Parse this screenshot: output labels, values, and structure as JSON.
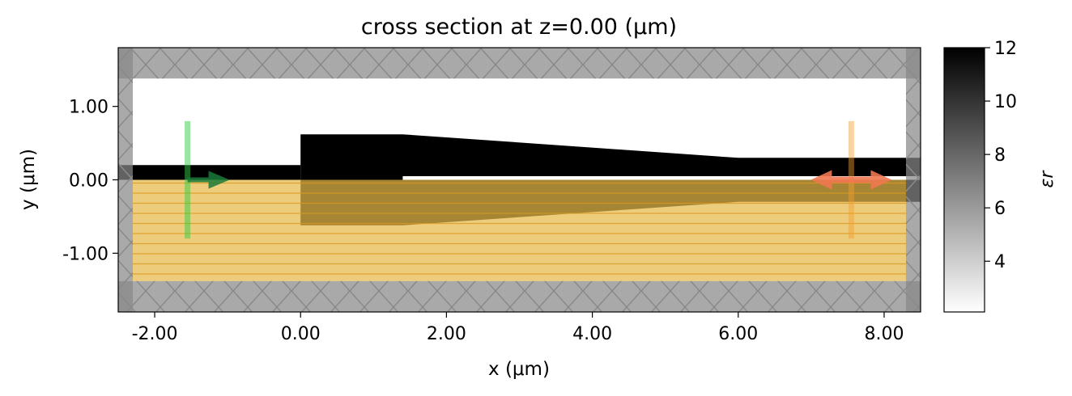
{
  "chart_data": {
    "type": "heatmap",
    "title": "cross section at z=0.00 (μm)",
    "xlabel": "x (μm)",
    "ylabel": "y (μm)",
    "xlim": [
      -2.5,
      8.5
    ],
    "ylim": [
      -1.8,
      1.8
    ],
    "xticks": [
      {
        "value": -2,
        "label": "-2.00"
      },
      {
        "value": 0,
        "label": "0.00"
      },
      {
        "value": 2,
        "label": "2.00"
      },
      {
        "value": 4,
        "label": "4.00"
      },
      {
        "value": 6,
        "label": "6.00"
      },
      {
        "value": 8,
        "label": "8.00"
      }
    ],
    "yticks": [
      {
        "value": 1,
        "label": "1.00"
      },
      {
        "value": 0,
        "label": "0.00"
      },
      {
        "value": -1,
        "label": "-1.00"
      }
    ],
    "colorbar": {
      "label": "εr",
      "range": [
        2.1,
        12
      ],
      "colormap": "gray_r",
      "ticks": [
        {
          "value": 12,
          "label": "12"
        },
        {
          "value": 10,
          "label": "10"
        },
        {
          "value": 8,
          "label": "8"
        },
        {
          "value": 6,
          "label": "6"
        },
        {
          "value": 4,
          "label": "4"
        }
      ]
    },
    "structures": [
      {
        "name": "input-waveguide",
        "permittivity": 12,
        "polygon": [
          [
            -2.5,
            0.2
          ],
          [
            0,
            0.2
          ],
          [
            0,
            0
          ],
          [
            -2.5,
            0
          ]
        ]
      },
      {
        "name": "taper-core",
        "permittivity": 12,
        "polygon": [
          [
            0,
            0.62
          ],
          [
            1.4,
            0.62
          ],
          [
            6,
            0.3
          ],
          [
            8.5,
            0.3
          ],
          [
            8.5,
            -0.3
          ],
          [
            6,
            -0.3
          ],
          [
            1.4,
            -0.62
          ],
          [
            0,
            -0.62
          ]
        ]
      },
      {
        "name": "slot-gap",
        "permittivity": 2.1,
        "polygon": [
          [
            1.4,
            0.05
          ],
          [
            8.5,
            0.05
          ],
          [
            8.5,
            0.0
          ],
          [
            1.4,
            0.0
          ]
        ]
      }
    ],
    "pml_regions": [
      {
        "name": "pml-top",
        "x": [
          -2.5,
          8.5
        ],
        "y": [
          1.38,
          1.8
        ]
      },
      {
        "name": "pml-bottom",
        "x": [
          -2.5,
          8.5
        ],
        "y": [
          -1.8,
          -1.38
        ]
      },
      {
        "name": "pml-left",
        "x": [
          -2.5,
          -2.3
        ],
        "y": [
          -1.8,
          1.8
        ]
      },
      {
        "name": "pml-right",
        "x": [
          8.3,
          8.5
        ],
        "y": [
          -1.8,
          1.8
        ]
      }
    ],
    "substrate_overlay": {
      "x": [
        -2.3,
        8.3
      ],
      "y": [
        -1.38,
        0.0
      ],
      "color": "#e6b84a"
    },
    "source": {
      "x": -1.55,
      "y": [
        -0.8,
        0.8
      ],
      "direction": "+x",
      "color": "#33cc44"
    },
    "monitor": {
      "x": 7.55,
      "y": [
        -0.8,
        0.8
      ],
      "direction": "both",
      "color": "#f0a030"
    }
  }
}
